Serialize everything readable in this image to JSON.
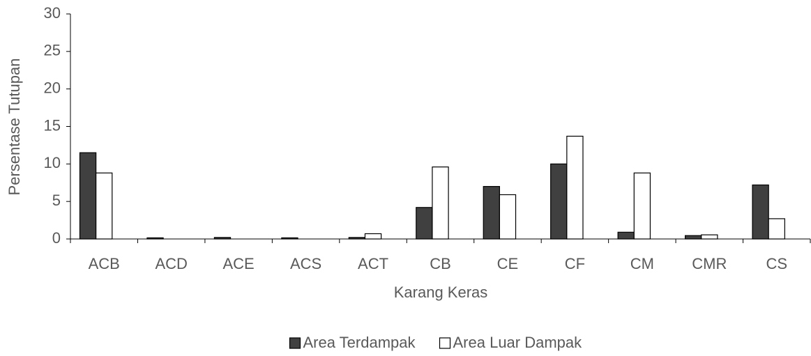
{
  "chart_data": {
    "type": "bar",
    "x_label": "Karang Keras",
    "y_label": "Persentase Tutupan",
    "categories": [
      "ACB",
      "ACD",
      "ACE",
      "ACS",
      "ACT",
      "CB",
      "CE",
      "CF",
      "CM",
      "CMR",
      "CS"
    ],
    "series": [
      {
        "name": "Area Terdampak",
        "color": "#404040",
        "values": [
          11.5,
          0.15,
          0.2,
          0.15,
          0.2,
          4.2,
          7.0,
          10.0,
          0.9,
          0.45,
          7.2
        ]
      },
      {
        "name": "Area Luar Dampak",
        "color": "#ffffff",
        "values": [
          8.8,
          0,
          0,
          0,
          0.7,
          9.6,
          5.9,
          13.7,
          8.8,
          0.55,
          2.7
        ]
      }
    ],
    "ylim": [
      0,
      30
    ],
    "yticks": [
      0,
      5,
      10,
      15,
      20,
      25,
      30
    ],
    "grid": false,
    "legend": "bottom"
  }
}
